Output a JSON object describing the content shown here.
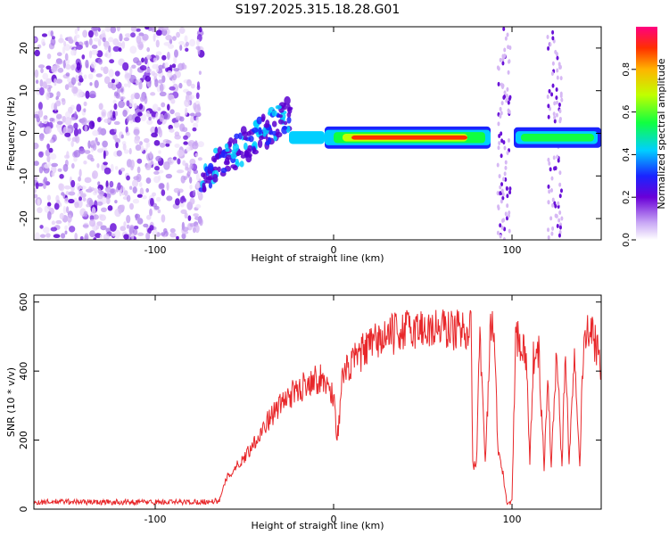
{
  "title": "S197.2025.315.18.28.G01",
  "colors": {
    "snr_line": "#e8272a",
    "axis": "#000000"
  },
  "chart_data": [
    {
      "type": "heatmap",
      "xlabel": "Height of straight line (km)",
      "ylabel": "Frequency (Hz)",
      "xlim": [
        -168,
        150
      ],
      "ylim": [
        -25,
        25
      ],
      "xticks": [
        -100,
        0,
        100
      ],
      "yticks": [
        -20,
        -10,
        0,
        10,
        20
      ],
      "colorbar": {
        "label": "Normalized spectral amplitude",
        "range": [
          0.0,
          1.0
        ],
        "ticks": [
          0.0,
          0.2,
          0.4,
          0.6,
          0.8
        ],
        "colormap": "rainbow (violet to red)"
      },
      "description_regions": [
        {
          "x_range": [
            -168,
            -74
          ],
          "note": "broadband noise, low amplitude"
        },
        {
          "x_range": [
            -74,
            -25
          ],
          "note": "rising scattered signal from about -10 Hz to +6 Hz"
        },
        {
          "x_range": [
            -25,
            150
          ],
          "note": "strong signal near -1 Hz, peak amplitude near 1.0 between 0 and 70 km"
        }
      ]
    },
    {
      "type": "line",
      "xlabel": "Height of straight line (km)",
      "ylabel": "SNR (10 * v/v)",
      "xlim": [
        -168,
        150
      ],
      "ylim": [
        0,
        620
      ],
      "xticks": [
        -100,
        0,
        100
      ],
      "yticks": [
        0,
        200,
        400,
        600
      ],
      "series": [
        {
          "name": "SNR",
          "x": [
            -168,
            -150,
            -130,
            -110,
            -90,
            -70,
            -64,
            -60,
            -55,
            -50,
            -45,
            -40,
            -35,
            -30,
            -25,
            -20,
            -15,
            -10,
            -5,
            0,
            2,
            5,
            10,
            15,
            20,
            25,
            30,
            35,
            40,
            45,
            50,
            55,
            60,
            65,
            70,
            75,
            77,
            78,
            80,
            82,
            85,
            88,
            90,
            92,
            95,
            97,
            100,
            102,
            105,
            108,
            110,
            112,
            115,
            118,
            120,
            122,
            125,
            128,
            130,
            132,
            135,
            138,
            140,
            142,
            145,
            148,
            150
          ],
          "y": [
            20,
            22,
            20,
            21,
            20,
            22,
            24,
            90,
            120,
            150,
            190,
            230,
            270,
            300,
            330,
            340,
            370,
            380,
            370,
            330,
            200,
            380,
            420,
            450,
            470,
            490,
            500,
            510,
            520,
            520,
            525,
            520,
            525,
            520,
            520,
            525,
            520,
            130,
            125,
            520,
            130,
            520,
            510,
            180,
            100,
            20,
            20,
            510,
            480,
            450,
            130,
            440,
            450,
            120,
            380,
            130,
            460,
            120,
            480,
            130,
            470,
            140,
            470,
            520,
            500,
            460,
            400
          ]
        }
      ]
    }
  ]
}
